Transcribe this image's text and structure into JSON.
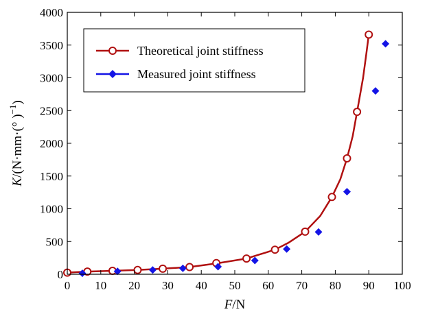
{
  "chart_data": {
    "type": "line",
    "title": "",
    "xlabel": {
      "italic": "F",
      "unit": "/N"
    },
    "ylabel": {
      "italic": "K",
      "unit": "/(N·mm·(° )",
      "sup": "−1",
      "close": ")"
    },
    "xlim": [
      0,
      100
    ],
    "ylim": [
      0,
      4000
    ],
    "x_ticks": [
      "0",
      "10",
      "20",
      "30",
      "40",
      "50",
      "60",
      "70",
      "80",
      "90",
      "100"
    ],
    "y_ticks": [
      "0",
      "500",
      "1000",
      "1500",
      "2000",
      "2500",
      "3000",
      "3500",
      "4000"
    ],
    "grid": false,
    "legend_position": "top-left",
    "series": [
      {
        "name": "Theoretical joint stiffness",
        "color": "#b01010",
        "marker": "open-circle",
        "line": "solid",
        "points": [
          [
            0,
            25
          ],
          [
            6,
            40
          ],
          [
            13.5,
            52
          ],
          [
            21,
            65
          ],
          [
            28.5,
            85
          ],
          [
            36.5,
            110
          ],
          [
            44.5,
            170
          ],
          [
            53.5,
            240
          ],
          [
            62,
            375
          ],
          [
            71,
            650
          ],
          [
            79,
            1180
          ],
          [
            83.5,
            1770
          ],
          [
            86.5,
            2480
          ],
          [
            90,
            3660
          ]
        ],
        "curve": [
          [
            0,
            25
          ],
          [
            6,
            40
          ],
          [
            13.5,
            52
          ],
          [
            21,
            65
          ],
          [
            28.5,
            85
          ],
          [
            36.5,
            110
          ],
          [
            44.5,
            165
          ],
          [
            53.5,
            240
          ],
          [
            62,
            375
          ],
          [
            66,
            480
          ],
          [
            71,
            650
          ],
          [
            75.5,
            890
          ],
          [
            79,
            1180
          ],
          [
            81.5,
            1450
          ],
          [
            83.5,
            1770
          ],
          [
            85.2,
            2110
          ],
          [
            86.5,
            2480
          ],
          [
            88.3,
            3000
          ],
          [
            89.3,
            3380
          ],
          [
            90,
            3660
          ]
        ]
      },
      {
        "name": "Measured joint stiffness",
        "color": "#1414e6",
        "marker": "diamond",
        "line": "none",
        "points": [
          [
            4.5,
            15
          ],
          [
            15,
            45
          ],
          [
            25.5,
            65
          ],
          [
            34.5,
            90
          ],
          [
            45,
            115
          ],
          [
            56,
            210
          ],
          [
            65.5,
            385
          ],
          [
            75,
            645
          ],
          [
            83.5,
            1260
          ],
          [
            92,
            2800
          ],
          [
            95,
            3520
          ]
        ]
      }
    ]
  }
}
